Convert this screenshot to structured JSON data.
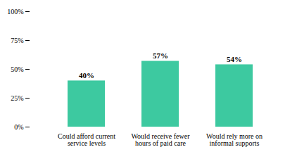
{
  "chart_data": {
    "type": "bar",
    "categories": [
      "Could afford current\nservice levels",
      "Would receive fewer\nhours of paid care",
      "Would rely more on\ninformal supports"
    ],
    "values": [
      40,
      57,
      54
    ],
    "value_labels": [
      "40%",
      "57%",
      "54%"
    ],
    "data_labels": true,
    "color": "#3DC9A0",
    "ylim": [
      0,
      100
    ],
    "yticks": [
      {
        "value": 0,
        "label": "0%"
      },
      {
        "value": 25,
        "label": "25%"
      },
      {
        "value": 50,
        "label": "50%"
      },
      {
        "value": 75,
        "label": "75%"
      },
      {
        "value": 100,
        "label": "100%"
      }
    ],
    "grid": false
  }
}
